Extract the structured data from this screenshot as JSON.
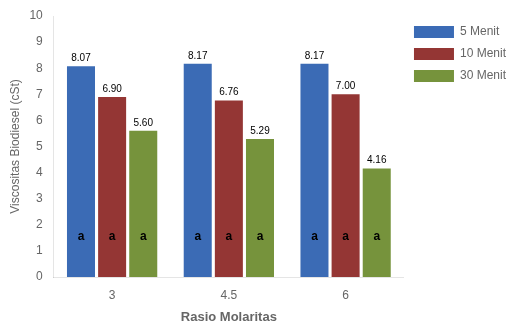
{
  "chart_data": {
    "type": "bar",
    "categories": [
      "3",
      "4.5",
      "6"
    ],
    "series": [
      {
        "name": "5 Menit",
        "color": "#3B6BB5",
        "values": [
          8.07,
          8.17,
          8.17
        ],
        "value_labels": [
          "8.07",
          "8.17",
          "8.17"
        ],
        "annotations": [
          "a",
          "a",
          "a"
        ]
      },
      {
        "name": "10 Menit",
        "color": "#943634",
        "values": [
          6.9,
          6.76,
          7.0
        ],
        "value_labels": [
          "6.90",
          "6.76",
          "7.00"
        ],
        "annotations": [
          "a",
          "a",
          "a"
        ]
      },
      {
        "name": "30 Menit",
        "color": "#76933C",
        "values": [
          5.6,
          5.29,
          4.16
        ],
        "value_labels": [
          "5.60",
          "5.29",
          "4.16"
        ],
        "annotations": [
          "a",
          "a",
          "a"
        ]
      }
    ],
    "annotation_y": 1.3,
    "xlabel": "Rasio Molaritas",
    "ylabel": "Viscositas Biodiesel (cSt)",
    "ylim": [
      0,
      10
    ],
    "yticks": [
      0,
      1,
      2,
      3,
      4,
      5,
      6,
      7,
      8,
      9,
      10
    ],
    "grid": false,
    "legend": "right",
    "data_labels": true
  }
}
